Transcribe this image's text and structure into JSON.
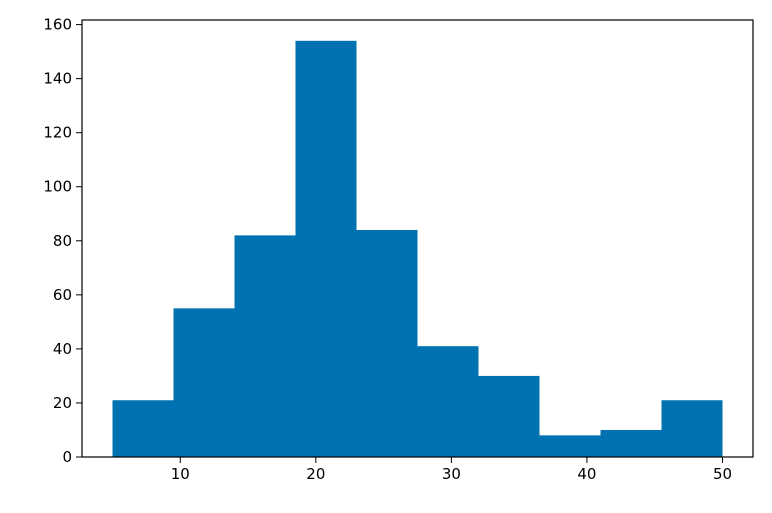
{
  "chart_data": {
    "type": "bar",
    "subtype": "histogram",
    "title": "",
    "xlabel": "",
    "ylabel": "",
    "bins": [
      {
        "x0": 5.0,
        "x1": 9.5,
        "count": 21
      },
      {
        "x0": 9.5,
        "x1": 14.0,
        "count": 55
      },
      {
        "x0": 14.0,
        "x1": 18.5,
        "count": 82
      },
      {
        "x0": 18.5,
        "x1": 23.0,
        "count": 154
      },
      {
        "x0": 23.0,
        "x1": 27.5,
        "count": 84
      },
      {
        "x0": 27.5,
        "x1": 32.0,
        "count": 41
      },
      {
        "x0": 32.0,
        "x1": 36.5,
        "count": 30
      },
      {
        "x0": 36.5,
        "x1": 41.0,
        "count": 8
      },
      {
        "x0": 41.0,
        "x1": 45.5,
        "count": 10
      },
      {
        "x0": 45.5,
        "x1": 50.0,
        "count": 21
      }
    ],
    "xlim": [
      2.75,
      52.25
    ],
    "ylim": [
      0,
      161.7
    ],
    "xticks": [
      10,
      20,
      30,
      40,
      50
    ],
    "yticks": [
      0,
      20,
      40,
      60,
      80,
      100,
      120,
      140,
      160
    ],
    "bar_color": "#0072b2",
    "grid": false,
    "legend": "none"
  }
}
